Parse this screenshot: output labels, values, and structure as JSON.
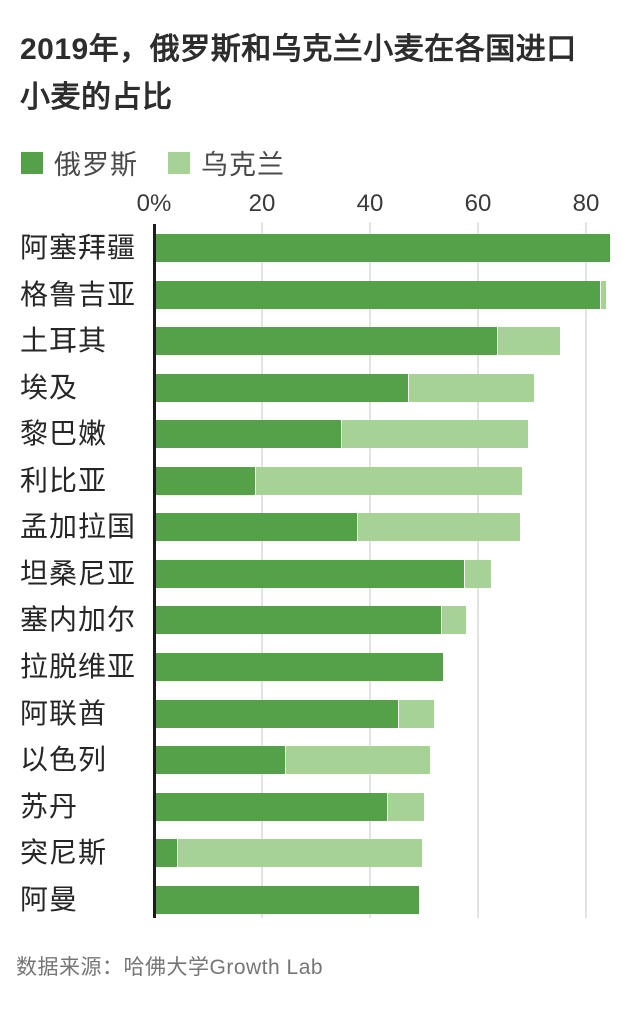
{
  "title": {
    "line1": "2019年，俄罗斯和乌克兰小麦在各国进口",
    "line2": "小麦的占比"
  },
  "legend": {
    "items": [
      {
        "label": "俄罗斯",
        "color": "#54a148"
      },
      {
        "label": "乌克兰",
        "color": "#a6d295"
      }
    ]
  },
  "source": "数据来源：哈佛大学Growth Lab",
  "colors": {
    "russia": "#54a148",
    "ukraine": "#a6d295",
    "axis": "#1c1c1c",
    "gridline": "#e3e3e3"
  },
  "chart_data": {
    "type": "bar",
    "orientation": "horizontal",
    "stacked": true,
    "title": "2019年，俄罗斯和乌克兰小麦在各国进口小麦的占比",
    "categories": [
      "阿塞拜疆",
      "格鲁吉亚",
      "土耳其",
      "埃及",
      "黎巴嫩",
      "利比亚",
      "孟加拉国",
      "坦桑尼亚",
      "塞内加尔",
      "拉脱维亚",
      "阿联酋",
      "以色列",
      "苏丹",
      "突尼斯",
      "阿曼"
    ],
    "series": [
      {
        "name": "俄罗斯",
        "color": "#54a148",
        "values": [
          84.1,
          82.3,
          63.1,
          46.7,
          34.3,
          18.3,
          37.2,
          57.0,
          52.8,
          53.1,
          44.8,
          23.9,
          42.8,
          3.9,
          48.7
        ]
      },
      {
        "name": "乌克兰",
        "color": "#a6d295",
        "values": [
          0,
          1.0,
          11.5,
          23.1,
          34.4,
          49.3,
          30.0,
          4.9,
          4.4,
          0,
          6.5,
          26.7,
          6.6,
          45.2,
          0
        ]
      }
    ],
    "x_ticks": [
      "0%",
      "20",
      "40",
      "60",
      "80"
    ],
    "x_tick_values": [
      0,
      20,
      40,
      60,
      80
    ],
    "xlim": [
      0,
      89
    ],
    "grid": true,
    "legend_position": "top",
    "unit": "%"
  }
}
